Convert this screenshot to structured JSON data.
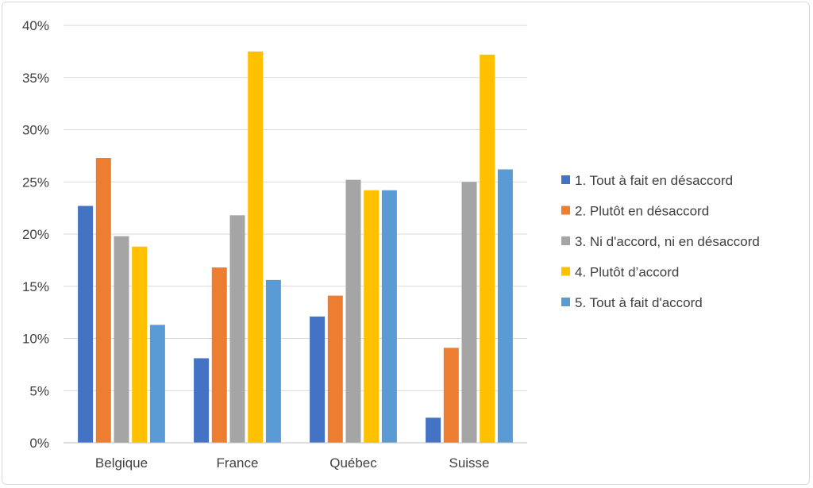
{
  "chart_data": {
    "type": "bar",
    "categories": [
      "Belgique",
      "France",
      "Québec",
      "Suisse"
    ],
    "series": [
      {
        "name": "1. Tout à fait en désaccord",
        "color": "#4472c4",
        "values": [
          22.7,
          8.1,
          12.1,
          2.4
        ]
      },
      {
        "name": "2. Plutôt en désaccord",
        "color": "#ed7d31",
        "values": [
          27.3,
          16.8,
          14.1,
          9.1
        ]
      },
      {
        "name": "3. Ni d'accord, ni en désaccord",
        "color": "#a5a5a5",
        "values": [
          19.8,
          21.8,
          25.2,
          25.0
        ]
      },
      {
        "name": "4. Plutôt d’accord",
        "color": "#ffc000",
        "values": [
          18.8,
          37.5,
          24.2,
          37.2
        ]
      },
      {
        "name": "5. Tout à fait d'accord",
        "color": "#5b9bd5",
        "values": [
          11.3,
          15.6,
          24.2,
          26.2
        ]
      }
    ],
    "ylim": [
      0,
      40
    ],
    "yticks": [
      "0%",
      "5%",
      "10%",
      "15%",
      "20%",
      "25%",
      "30%",
      "35%",
      "40%"
    ],
    "ytick_values": [
      0,
      5,
      10,
      15,
      20,
      25,
      30,
      35,
      40
    ],
    "grid": true,
    "legend": "right",
    "title": "",
    "xlabel": "",
    "ylabel": ""
  }
}
